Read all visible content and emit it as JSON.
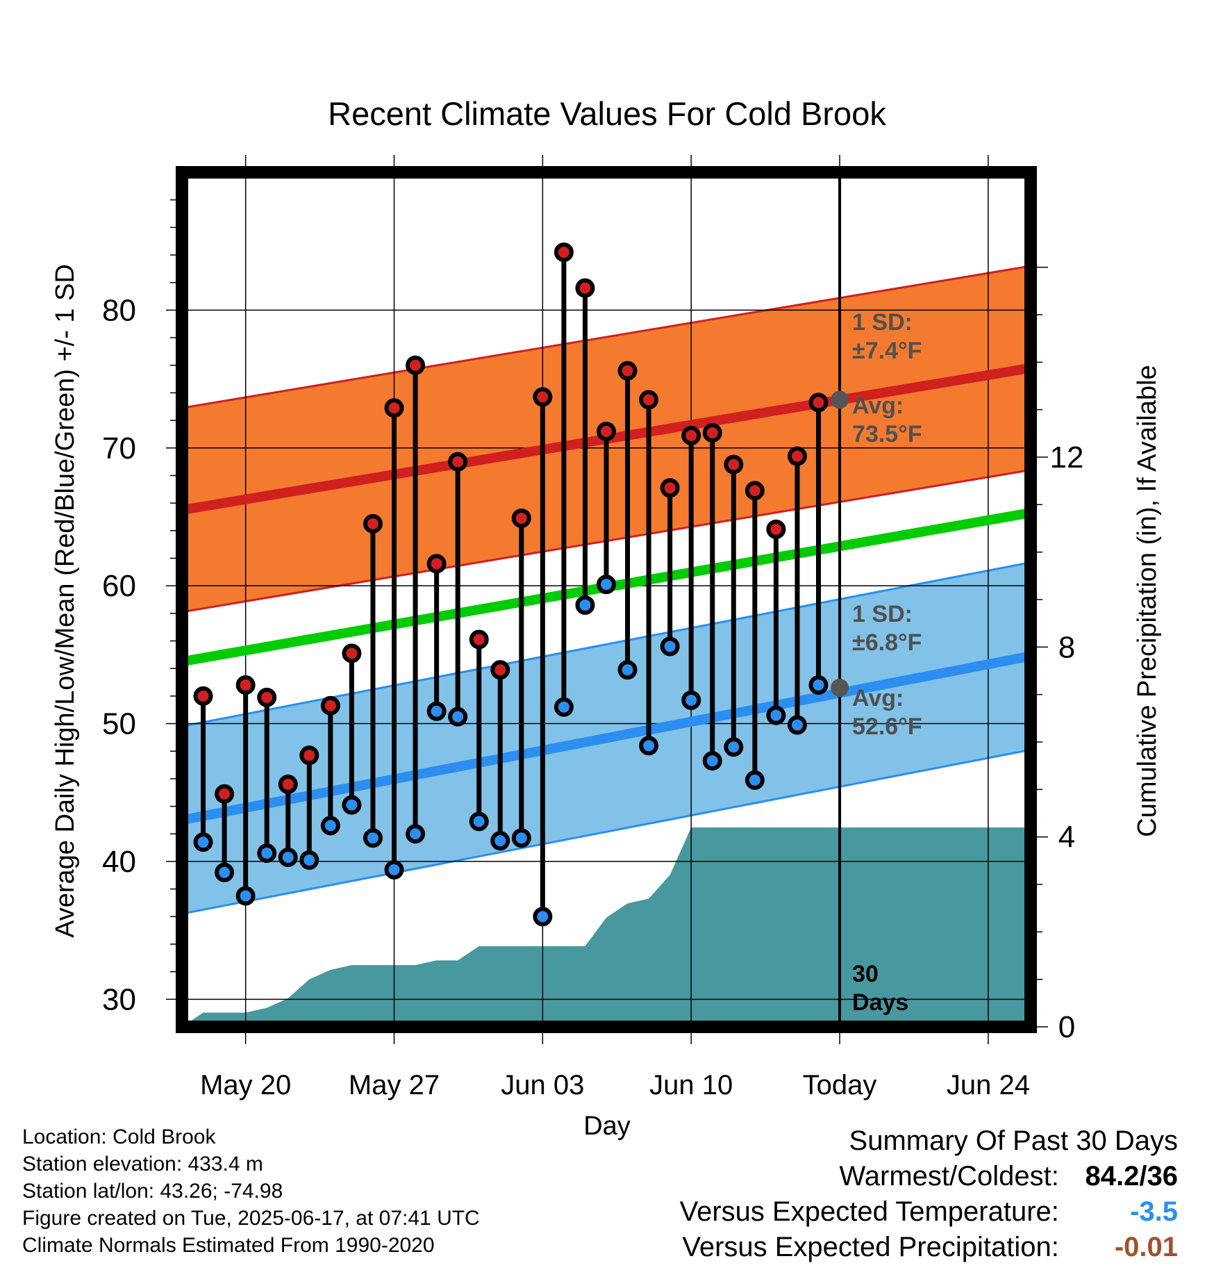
{
  "chart_data": {
    "type": "line",
    "title": "Recent Climate Values For Cold Brook",
    "xlabel": "Day",
    "ylabel": "Average Daily High/Low/Mean (Red/Blue/Green) +/- 1 SD",
    "y2label": "Cumulative Precipitation (in), If Available",
    "x_range": [
      "2025-05-17",
      "2025-06-26"
    ],
    "ylim": [
      28,
      90
    ],
    "y2lim": [
      0,
      18
    ],
    "yticks": [
      30,
      40,
      50,
      60,
      70,
      80
    ],
    "y2ticks": [
      0,
      4,
      8,
      12
    ],
    "xticks": [
      {
        "date": "2025-05-20",
        "label": "May 20"
      },
      {
        "date": "2025-05-27",
        "label": "May 27"
      },
      {
        "date": "2025-06-03",
        "label": "Jun 03"
      },
      {
        "date": "2025-06-10",
        "label": "Jun 10"
      },
      {
        "date": "2025-06-17",
        "label": "Today"
      },
      {
        "date": "2025-06-24",
        "label": "Jun 24"
      }
    ],
    "grid": true,
    "today": "2025-06-17",
    "days": [
      "2025-05-18",
      "2025-05-19",
      "2025-05-20",
      "2025-05-21",
      "2025-05-22",
      "2025-05-23",
      "2025-05-24",
      "2025-05-25",
      "2025-05-26",
      "2025-05-27",
      "2025-05-28",
      "2025-05-29",
      "2025-05-30",
      "2025-05-31",
      "2025-06-01",
      "2025-06-02",
      "2025-06-03",
      "2025-06-04",
      "2025-06-05",
      "2025-06-06",
      "2025-06-07",
      "2025-06-08",
      "2025-06-09",
      "2025-06-10",
      "2025-06-11",
      "2025-06-12",
      "2025-06-13",
      "2025-06-14",
      "2025-06-15",
      "2025-06-16"
    ],
    "series": [
      {
        "name": "Daily High",
        "color": "#d02020",
        "values": [
          52.0,
          44.9,
          52.8,
          51.9,
          45.6,
          47.7,
          51.3,
          55.1,
          64.5,
          72.9,
          76.0,
          61.6,
          69.0,
          56.1,
          53.9,
          64.9,
          73.7,
          84.2,
          81.6,
          71.2,
          75.6,
          73.5,
          67.1,
          70.9,
          71.1,
          68.8,
          66.9,
          64.1,
          69.4,
          73.3
        ]
      },
      {
        "name": "Daily Low",
        "color": "#2b8ef0",
        "values": [
          41.4,
          39.2,
          37.5,
          40.6,
          40.3,
          40.1,
          42.6,
          44.1,
          41.7,
          39.4,
          42.0,
          50.9,
          50.5,
          42.9,
          41.5,
          41.7,
          36.0,
          51.2,
          58.6,
          60.1,
          53.9,
          48.4,
          55.6,
          51.7,
          47.3,
          48.3,
          45.9,
          50.6,
          49.9,
          52.8
        ]
      }
    ],
    "normals": {
      "dates": [
        "2025-05-17",
        "2025-06-26"
      ],
      "high_mean": [
        65.5,
        75.8
      ],
      "high_sd": 7.4,
      "low_mean": [
        43.0,
        54.9
      ],
      "low_sd": 6.8,
      "mean": [
        54.5,
        65.3
      ],
      "today_high_avg": 73.5,
      "today_low_avg": 52.6
    },
    "precipitation": {
      "color": "#4898a0",
      "dates": [
        "2025-05-17",
        "2025-05-18",
        "2025-05-19",
        "2025-05-20",
        "2025-05-21",
        "2025-05-22",
        "2025-05-23",
        "2025-05-24",
        "2025-05-25",
        "2025-05-26",
        "2025-05-27",
        "2025-05-28",
        "2025-05-29",
        "2025-05-30",
        "2025-05-31",
        "2025-06-01",
        "2025-06-02",
        "2025-06-03",
        "2025-06-04",
        "2025-06-05",
        "2025-06-06",
        "2025-06-07",
        "2025-06-08",
        "2025-06-09",
        "2025-06-10",
        "2025-06-11",
        "2025-06-12",
        "2025-06-13",
        "2025-06-14",
        "2025-06-15",
        "2025-06-16",
        "2025-06-17",
        "2025-06-26"
      ],
      "values": [
        0.0,
        0.3,
        0.3,
        0.3,
        0.4,
        0.6,
        1.0,
        1.2,
        1.3,
        1.3,
        1.3,
        1.3,
        1.4,
        1.4,
        1.7,
        1.7,
        1.7,
        1.7,
        1.7,
        1.7,
        2.3,
        2.6,
        2.7,
        3.2,
        4.2,
        4.2,
        4.2,
        4.2,
        4.2,
        4.2,
        4.2,
        4.2,
        4.2
      ]
    },
    "annotations": {
      "high_sd_label": [
        "1 SD:",
        "±7.4°F"
      ],
      "high_avg_label": [
        "Avg:",
        "73.5°F"
      ],
      "low_sd_label": [
        "1 SD:",
        "±6.8°F"
      ],
      "low_avg_label": [
        "Avg:",
        "52.6°F"
      ],
      "days_label": [
        "30",
        "Days"
      ]
    }
  },
  "info": {
    "location": "Location: Cold Brook",
    "elevation": "Station elevation: 433.4 m",
    "latlon": "Station lat/lon: 43.26; -74.98",
    "created": "Figure created on Tue, 2025-06-17, at 07:41 UTC",
    "normals": "Climate Normals Estimated From 1990-2020"
  },
  "summary": {
    "title": "Summary Of Past 30 Days",
    "warmest_label": "Warmest/Coldest:",
    "warmest_value": "84.2/36",
    "temp_label": "Versus Expected Temperature:",
    "temp_value": "-3.5",
    "temp_color": "#2b8ef0",
    "precip_label": "Versus Expected Precipitation:",
    "precip_value": "-0.01",
    "precip_color": "#a0522d"
  }
}
